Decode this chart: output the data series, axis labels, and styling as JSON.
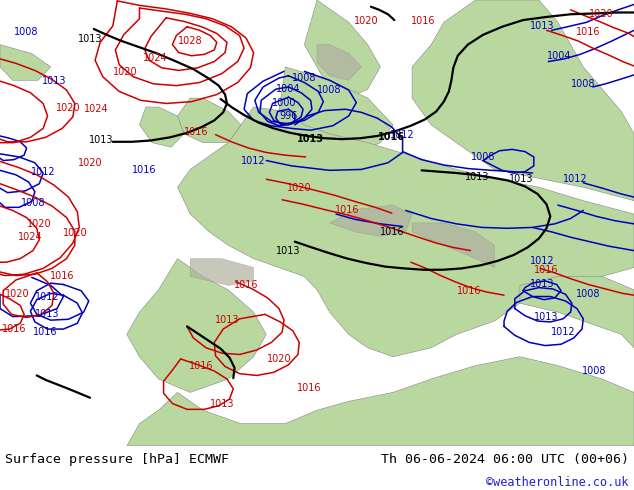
{
  "title_left": "Surface pressure [hPa] ECMWF",
  "title_right": "Th 06-06-2024 06:00 UTC (00+06)",
  "copyright": "©weatheronline.co.uk",
  "fig_width": 6.34,
  "fig_height": 4.9,
  "dpi": 100,
  "bottom_bar_color": "#e8e8e8",
  "title_fontsize": 9.5,
  "copyright_fontsize": 8.5,
  "copyright_color": "#2222cc",
  "text_color": "#000000",
  "ocean_color": "#e8e8e8",
  "land_color": "#b8d8a0",
  "mountain_color": "#b0b0a0",
  "label_fontsize": 7.0,
  "black_lw": 1.6,
  "colored_lw": 1.1
}
